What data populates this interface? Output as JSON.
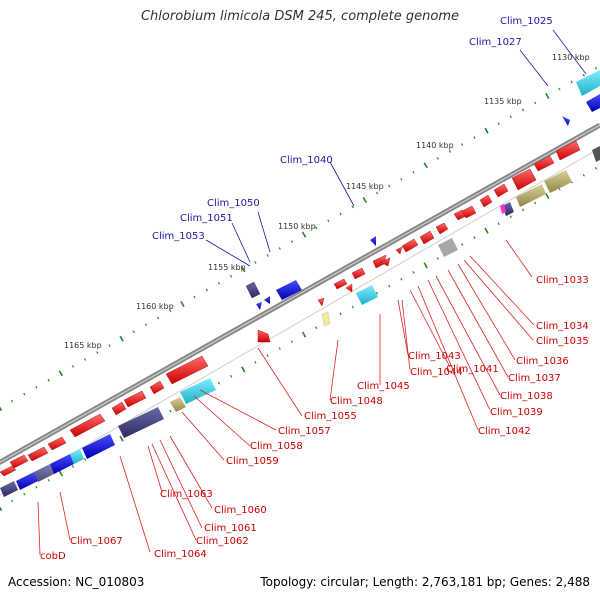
{
  "title": "Chlorobium limicola DSM 245, complete genome",
  "footer": {
    "accession": "Accession: NC_010803",
    "summary": "Topology: circular; Length: 2,763,181 bp; Genes: 2,488"
  },
  "ticks": [
    "1130 kbp",
    "1135 kbp",
    "1140 kbp",
    "1145 kbp",
    "1150 kbp",
    "1155 kbp",
    "1160 kbp",
    "1165 kbp"
  ],
  "forward_labels": [
    "Clim_1025",
    "Clim_1027",
    "Clim_1040",
    "Clim_1050",
    "Clim_1051",
    "Clim_1053"
  ],
  "reverse_labels": [
    "Clim_1033",
    "Clim_1034",
    "Clim_1035",
    "Clim_1036",
    "Clim_1037",
    "Clim_1038",
    "Clim_1039",
    "Clim_1041",
    "Clim_1042",
    "Clim_1043",
    "Clim_1044",
    "Clim_1045",
    "Clim_1048",
    "Clim_1055",
    "Clim_1057",
    "Clim_1058",
    "Clim_1059",
    "Clim_1060",
    "Clim_1061",
    "Clim_1062",
    "Clim_1063",
    "Clim_1064",
    "Clim_1067",
    "cobD"
  ],
  "colors": {
    "backbone": "#8a8a8a",
    "forward_cds": "#0000e0",
    "reverse_cds": "#ff0000",
    "forward_label": "#1a1aa8",
    "reverse_label": "#cc0000",
    "cyan": "#33ccdd",
    "navy": "#3a3a7a",
    "olive": "#a8a060",
    "grey": "#a0a0a0",
    "magenta": "#ff33cc",
    "tick_mark": "#228822"
  }
}
